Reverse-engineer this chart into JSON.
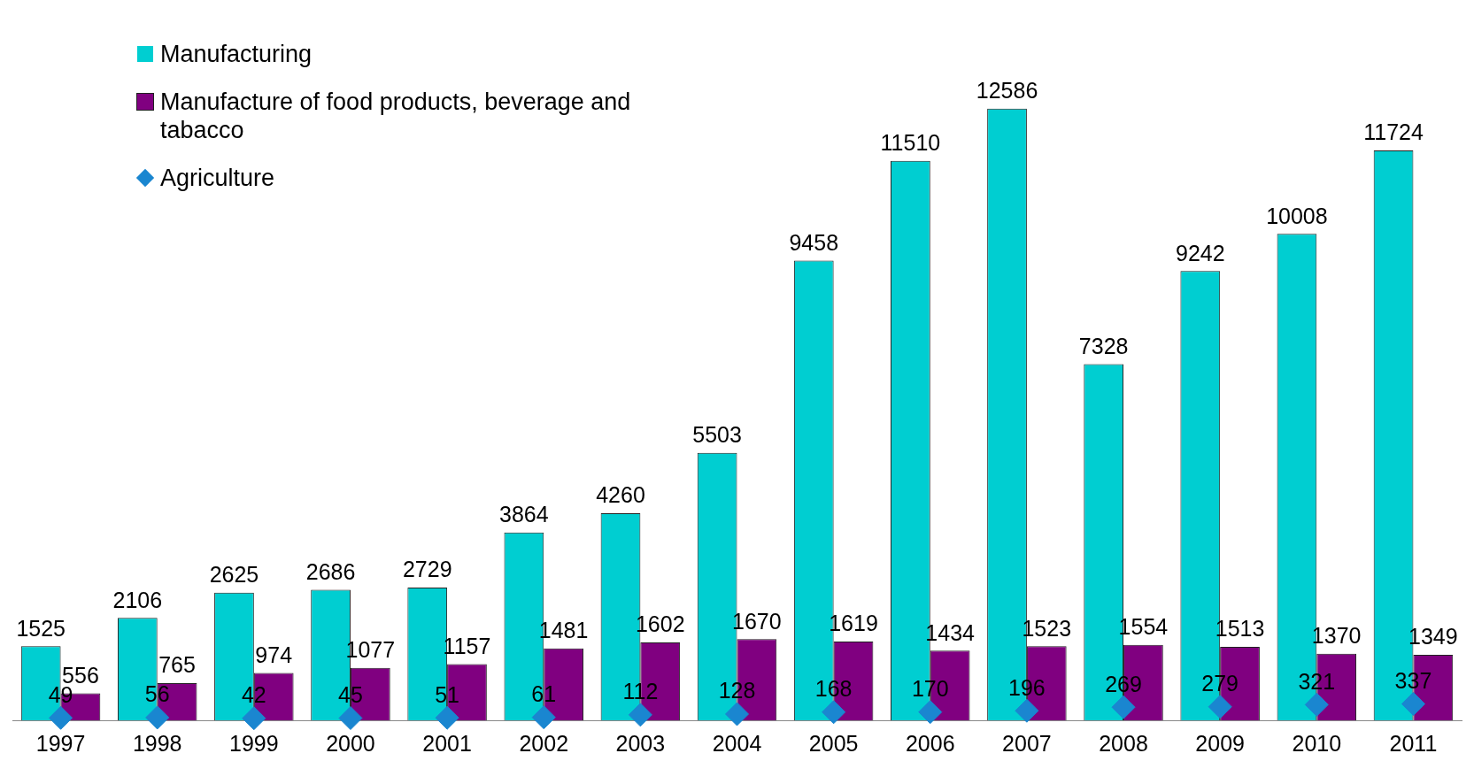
{
  "chart_data": {
    "type": "bar",
    "categories": [
      "1997",
      "1998",
      "1999",
      "2000",
      "2001",
      "2002",
      "2003",
      "2004",
      "2005",
      "2006",
      "2007",
      "2008",
      "2009",
      "2010",
      "2011"
    ],
    "series": [
      {
        "name": "Manufacturing",
        "color": "#00ced1",
        "values": [
          1525,
          2106,
          2625,
          2686,
          2729,
          3864,
          4260,
          5503,
          9458,
          11510,
          12586,
          7328,
          9242,
          10008,
          11724
        ]
      },
      {
        "name": "Manufacture of food products, beverage and tabacco",
        "color": "#800080",
        "values": [
          556,
          765,
          974,
          1077,
          1157,
          1481,
          1602,
          1670,
          1619,
          1434,
          1523,
          1554,
          1513,
          1370,
          1349
        ]
      },
      {
        "name": "Agriculture",
        "type": "scatter",
        "color": "#1a86d0",
        "marker": "diamond",
        "values": [
          49,
          56,
          42,
          45,
          51,
          61,
          112,
          128,
          168,
          170,
          196,
          269,
          279,
          321,
          337
        ]
      }
    ],
    "data_labels": true,
    "legend": "top left",
    "grid": false,
    "tick_labels": "x"
  }
}
